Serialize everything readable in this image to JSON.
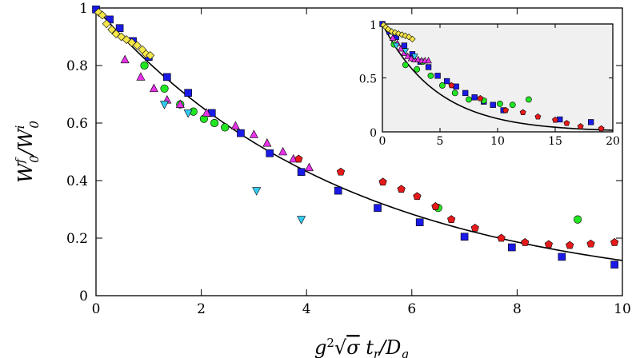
{
  "chart_data": [
    {
      "type": "scatter",
      "xlabel": "g²√σ t_r/D_q",
      "ylabel": "W₀ᶠ/W₀ⁱ",
      "xlim": [
        0,
        10
      ],
      "ylim": [
        0,
        1
      ],
      "xticks": [
        "0",
        "2",
        "4",
        "6",
        "8",
        "10"
      ],
      "yticks": [
        "0",
        "0.2",
        "0.4",
        "0.6",
        "0.8",
        "1"
      ],
      "grid": false,
      "series": [
        {
          "marker": "square",
          "color": "#1a1ae6",
          "points": [
            [
              0,
              0.995
            ],
            [
              0.26,
              0.96
            ],
            [
              0.45,
              0.93
            ],
            [
              0.7,
              0.885
            ],
            [
              1.0,
              0.83
            ],
            [
              1.35,
              0.76
            ],
            [
              1.75,
              0.705
            ],
            [
              2.2,
              0.635
            ],
            [
              2.75,
              0.565
            ],
            [
              3.3,
              0.495
            ],
            [
              3.9,
              0.43
            ],
            [
              4.6,
              0.365
            ],
            [
              5.35,
              0.305
            ],
            [
              6.15,
              0.255
            ],
            [
              7.0,
              0.205
            ],
            [
              7.9,
              0.168
            ],
            [
              8.85,
              0.135
            ],
            [
              9.85,
              0.108
            ]
          ]
        },
        {
          "marker": "diamond",
          "color": "#f5e64a",
          "points": [
            [
              0.05,
              0.985
            ],
            [
              0.12,
              0.975
            ],
            [
              0.2,
              0.945
            ],
            [
              0.3,
              0.925
            ],
            [
              0.38,
              0.91
            ],
            [
              0.48,
              0.9
            ],
            [
              0.58,
              0.89
            ],
            [
              0.68,
              0.88
            ],
            [
              0.78,
              0.87
            ],
            [
              0.88,
              0.855
            ],
            [
              0.95,
              0.84
            ],
            [
              1.03,
              0.835
            ]
          ]
        },
        {
          "marker": "circle",
          "color": "#22e622",
          "points": [
            [
              0.92,
              0.8
            ],
            [
              1.3,
              0.72
            ],
            [
              1.6,
              0.665
            ],
            [
              1.85,
              0.64
            ],
            [
              2.05,
              0.615
            ],
            [
              2.25,
              0.6
            ],
            [
              2.45,
              0.585
            ],
            [
              6.5,
              0.305
            ],
            [
              9.15,
              0.265
            ]
          ]
        },
        {
          "marker": "triangle-up",
          "color": "#e633e6",
          "points": [
            [
              0.55,
              0.82
            ],
            [
              0.85,
              0.76
            ],
            [
              1.1,
              0.72
            ],
            [
              1.35,
              0.68
            ],
            [
              1.6,
              0.665
            ],
            [
              2.1,
              0.635
            ],
            [
              2.65,
              0.59
            ],
            [
              3.0,
              0.56
            ],
            [
              3.25,
              0.53
            ],
            [
              3.55,
              0.5
            ],
            [
              3.75,
              0.475
            ],
            [
              4.05,
              0.445
            ]
          ]
        },
        {
          "marker": "triangle-down",
          "color": "#33ccf0",
          "points": [
            [
              1.3,
              0.665
            ],
            [
              1.75,
              0.635
            ],
            [
              3.05,
              0.365
            ],
            [
              3.9,
              0.265
            ]
          ]
        },
        {
          "marker": "pentagon",
          "color": "#e61a1a",
          "points": [
            [
              3.85,
              0.475
            ],
            [
              4.65,
              0.43
            ],
            [
              5.45,
              0.395
            ],
            [
              5.8,
              0.37
            ],
            [
              6.1,
              0.345
            ],
            [
              6.45,
              0.31
            ],
            [
              6.75,
              0.265
            ],
            [
              7.2,
              0.235
            ],
            [
              7.7,
              0.2
            ],
            [
              8.15,
              0.185
            ],
            [
              8.6,
              0.178
            ],
            [
              9.0,
              0.175
            ],
            [
              9.4,
              0.18
            ],
            [
              9.85,
              0.185
            ]
          ]
        }
      ],
      "fit_curve": {
        "type": "line",
        "color": "#000000",
        "function": "exp(-0.21 x)"
      }
    },
    {
      "type": "scatter",
      "xlabel": "g²√σ t_r/D_q",
      "ylabel": "W₀ᶠ/W₀ⁱ",
      "xlim": [
        0,
        20
      ],
      "ylim": [
        0,
        1
      ],
      "xticks": [
        "0",
        "5",
        "10",
        "15",
        "20"
      ],
      "yticks": [
        "0",
        "0.5",
        "1"
      ],
      "background": "#f0f0f0",
      "series": [
        {
          "marker": "square",
          "color": "#1a1ae6",
          "points": [
            [
              0,
              1.0
            ],
            [
              0.6,
              0.93
            ],
            [
              1.2,
              0.88
            ],
            [
              1.9,
              0.8
            ],
            [
              2.6,
              0.72
            ],
            [
              3.3,
              0.65
            ],
            [
              4.0,
              0.6
            ],
            [
              4.8,
              0.52
            ],
            [
              5.6,
              0.47
            ],
            [
              6.4,
              0.42
            ],
            [
              7.2,
              0.36
            ],
            [
              8.0,
              0.32
            ],
            [
              8.8,
              0.28
            ],
            [
              9.6,
              0.25
            ],
            [
              10.5,
              0.2
            ],
            [
              15.4,
              0.115
            ],
            [
              18.1,
              0.09
            ]
          ]
        },
        {
          "marker": "diamond",
          "color": "#f5e64a",
          "points": [
            [
              0.1,
              0.99
            ],
            [
              0.3,
              0.97
            ],
            [
              0.5,
              0.95
            ],
            [
              0.8,
              0.93
            ],
            [
              1.1,
              0.92
            ],
            [
              1.4,
              0.91
            ],
            [
              1.7,
              0.9
            ],
            [
              2.0,
              0.89
            ],
            [
              2.3,
              0.88
            ],
            [
              2.6,
              0.86
            ]
          ]
        },
        {
          "marker": "circle",
          "color": "#22e622",
          "points": [
            [
              1.0,
              0.81
            ],
            [
              2.0,
              0.62
            ],
            [
              3.0,
              0.58
            ],
            [
              3.5,
              0.65
            ],
            [
              4.2,
              0.52
            ],
            [
              5.2,
              0.43
            ],
            [
              6.3,
              0.36
            ],
            [
              7.5,
              0.3
            ],
            [
              8.8,
              0.29
            ],
            [
              10.2,
              0.26
            ],
            [
              11.3,
              0.25
            ],
            [
              12.7,
              0.3
            ]
          ]
        },
        {
          "marker": "triangle-up",
          "color": "#e633e6",
          "points": [
            [
              0.9,
              0.87
            ],
            [
              1.3,
              0.82
            ],
            [
              1.6,
              0.77
            ],
            [
              1.9,
              0.73
            ],
            [
              2.2,
              0.7
            ],
            [
              2.5,
              0.68
            ],
            [
              2.8,
              0.67
            ],
            [
              3.1,
              0.67
            ],
            [
              3.4,
              0.66
            ],
            [
              3.7,
              0.66
            ],
            [
              4.0,
              0.66
            ]
          ]
        },
        {
          "marker": "triangle-down",
          "color": "#33ccf0",
          "points": [
            [
              1.2,
              0.8
            ],
            [
              2.0,
              0.75
            ],
            [
              2.8,
              0.7
            ]
          ]
        },
        {
          "marker": "pentagon",
          "color": "#e61a1a",
          "points": [
            [
              6.0,
              0.43
            ],
            [
              8.5,
              0.31
            ],
            [
              10.7,
              0.2
            ],
            [
              12.2,
              0.18
            ],
            [
              13.5,
              0.14
            ],
            [
              15.0,
              0.11
            ],
            [
              16.0,
              0.08
            ],
            [
              17.2,
              0.05
            ],
            [
              19.0,
              0.03
            ]
          ]
        }
      ],
      "fit_curve": {
        "type": "line",
        "color": "#000000",
        "function": "exp(-0.21 x)"
      }
    }
  ]
}
